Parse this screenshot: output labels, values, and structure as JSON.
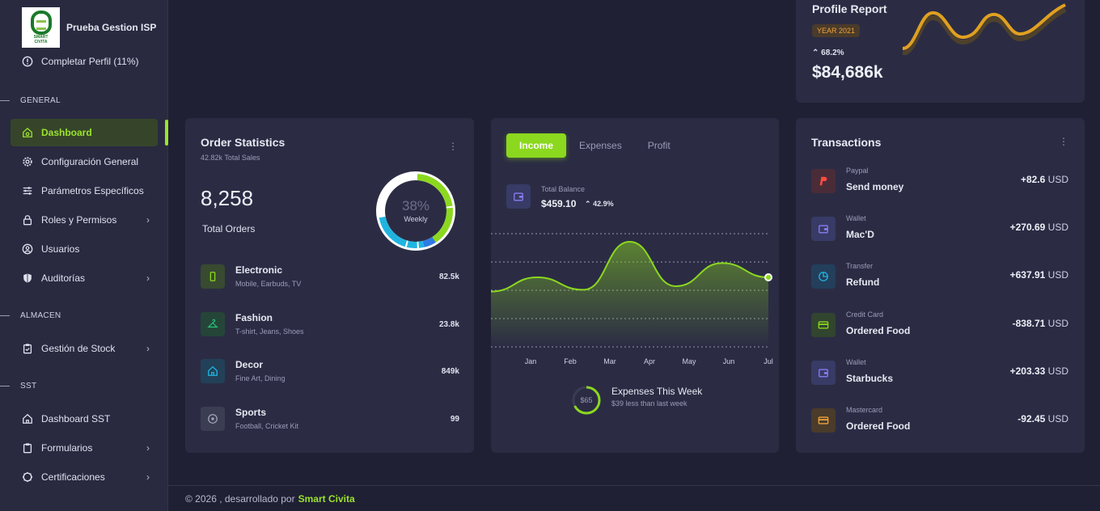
{
  "brand": {
    "name": "Prueba Gestion ISP",
    "logo_text": [
      "SMART",
      "CIVITA"
    ]
  },
  "sidebar": {
    "profile_link": "Completar Perfil (11%)",
    "sections": [
      {
        "title": "GENERAL"
      },
      {
        "title": "ALMACEN"
      },
      {
        "title": "SST"
      }
    ],
    "items": [
      {
        "label": "Dashboard",
        "icon": "home-icon"
      },
      {
        "label": "Configuración General",
        "icon": "gear-icon"
      },
      {
        "label": "Parámetros Específicos",
        "icon": "sliders-icon"
      },
      {
        "label": "Roles y Permisos",
        "icon": "lock-icon"
      },
      {
        "label": "Usuarios",
        "icon": "user-circle-icon"
      },
      {
        "label": "Auditorías",
        "icon": "shield-icon"
      },
      {
        "label": "Gestión de Stock",
        "icon": "clipboard-icon"
      },
      {
        "label": "Dashboard SST",
        "icon": "home-icon"
      },
      {
        "label": "Formularios",
        "icon": "clipboard-icon"
      },
      {
        "label": "Certificaciones",
        "icon": "badge-icon"
      }
    ]
  },
  "profile_report": {
    "title": "Profile Report",
    "badge": "YEAR 2021",
    "change": "68.2%",
    "value": "$84,686k",
    "accent": "#e0a020"
  },
  "order_statistics": {
    "title": "Order Statistics",
    "subtitle": "42.82k Total Sales",
    "total": "8,258",
    "total_label": "Total Orders",
    "donut_center": "38%",
    "donut_label": "Weekly",
    "categories": [
      {
        "name": "Electronic",
        "sub": "Mobile, Earbuds, TV",
        "value": "82.5k",
        "color": "#8bd81f"
      },
      {
        "name": "Fashion",
        "sub": "T-shirt, Jeans, Shoes",
        "value": "23.8k",
        "color": "#27c27a"
      },
      {
        "name": "Decor",
        "sub": "Fine Art, Dining",
        "value": "849k",
        "color": "#1fb4e0"
      },
      {
        "name": "Sports",
        "sub": "Football, Cricket Kit",
        "value": "99",
        "color": "#a0a3b8"
      }
    ]
  },
  "income": {
    "tabs": [
      "Income",
      "Expenses",
      "Profit"
    ],
    "balance_label": "Total Balance",
    "balance_value": "$459.10",
    "balance_change": "42.9%",
    "expenses_ring_value": "$65",
    "expenses_title": "Expenses This Week",
    "expenses_sub": "$39 less than last week",
    "accent": "#8bd81f"
  },
  "chart_data": {
    "type": "area",
    "x": [
      "Jan",
      "Feb",
      "Mar",
      "Apr",
      "May",
      "Jun",
      "Jul"
    ],
    "series": [
      {
        "values": [
          22,
          30,
          23,
          50,
          25,
          38,
          30
        ]
      }
    ],
    "color": "#8bd81f",
    "grid": true
  },
  "transactions": {
    "title": "Transactions",
    "items": [
      {
        "kind": "Paypal",
        "desc": "Send money",
        "amount": "+82.6",
        "currency": "USD",
        "icon": "paypal-icon",
        "bg": "#4a2c38",
        "fg": "#ff4b3e"
      },
      {
        "kind": "Wallet",
        "desc": "Mac'D",
        "amount": "+270.69",
        "currency": "USD",
        "icon": "wallet-icon",
        "bg": "#383b66",
        "fg": "#8a7cf0"
      },
      {
        "kind": "Transfer",
        "desc": "Refund",
        "amount": "+637.91",
        "currency": "USD",
        "icon": "chart-icon",
        "bg": "#233f5c",
        "fg": "#1fb4e0"
      },
      {
        "kind": "Credit Card",
        "desc": "Ordered Food",
        "amount": "-838.71",
        "currency": "USD",
        "icon": "credit-card-icon",
        "bg": "#32452f",
        "fg": "#8bd81f"
      },
      {
        "kind": "Wallet",
        "desc": "Starbucks",
        "amount": "+203.33",
        "currency": "USD",
        "icon": "wallet-icon",
        "bg": "#383b66",
        "fg": "#8a7cf0"
      },
      {
        "kind": "Mastercard",
        "desc": "Ordered Food",
        "amount": "-92.45",
        "currency": "USD",
        "icon": "credit-card-icon",
        "bg": "#4a3b2a",
        "fg": "#f0a33b"
      }
    ]
  },
  "footer": {
    "text": "© 2026 , desarrollado por",
    "brand": "Smart Civita"
  }
}
